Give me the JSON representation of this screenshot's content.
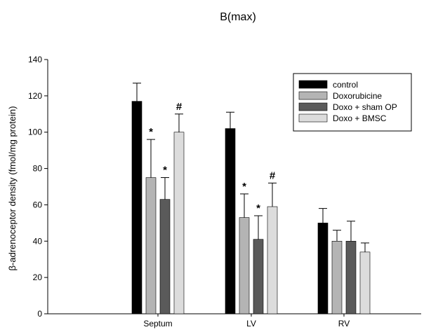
{
  "chart_data": {
    "type": "bar",
    "title": "B(max)",
    "xlabel": "",
    "ylabel": "β-adrenoceptor density (fmol/mg protein)",
    "ylim": [
      0,
      140
    ],
    "yticks": [
      0,
      20,
      40,
      60,
      80,
      100,
      120,
      140
    ],
    "grid": false,
    "legend_position": "top-right",
    "categories": [
      "Septum",
      "LV",
      "RV"
    ],
    "series": [
      {
        "name": "control",
        "color": "#000000",
        "values": [
          117,
          102,
          50
        ],
        "errors": [
          10,
          9,
          8
        ]
      },
      {
        "name": "Doxorubicine",
        "color": "#b4b4b4",
        "values": [
          75,
          53,
          40
        ],
        "errors": [
          21,
          13,
          6
        ]
      },
      {
        "name": "Doxo + sham OP",
        "color": "#5a5a5a",
        "values": [
          63,
          41,
          40
        ],
        "errors": [
          12,
          13,
          11
        ]
      },
      {
        "name": "Doxo + BMSC",
        "color": "#dcdcdc",
        "values": [
          100,
          59,
          34
        ],
        "errors": [
          10,
          13,
          5
        ]
      }
    ],
    "annotations": [
      {
        "category": "Septum",
        "series": "Doxorubicine",
        "text": "*"
      },
      {
        "category": "Septum",
        "series": "Doxo + sham OP",
        "text": "*"
      },
      {
        "category": "Septum",
        "series": "Doxo + BMSC",
        "text": "#"
      },
      {
        "category": "LV",
        "series": "Doxorubicine",
        "text": "*"
      },
      {
        "category": "LV",
        "series": "Doxo + sham OP",
        "text": "*"
      },
      {
        "category": "LV",
        "series": "Doxo + BMSC",
        "text": "#"
      }
    ]
  }
}
